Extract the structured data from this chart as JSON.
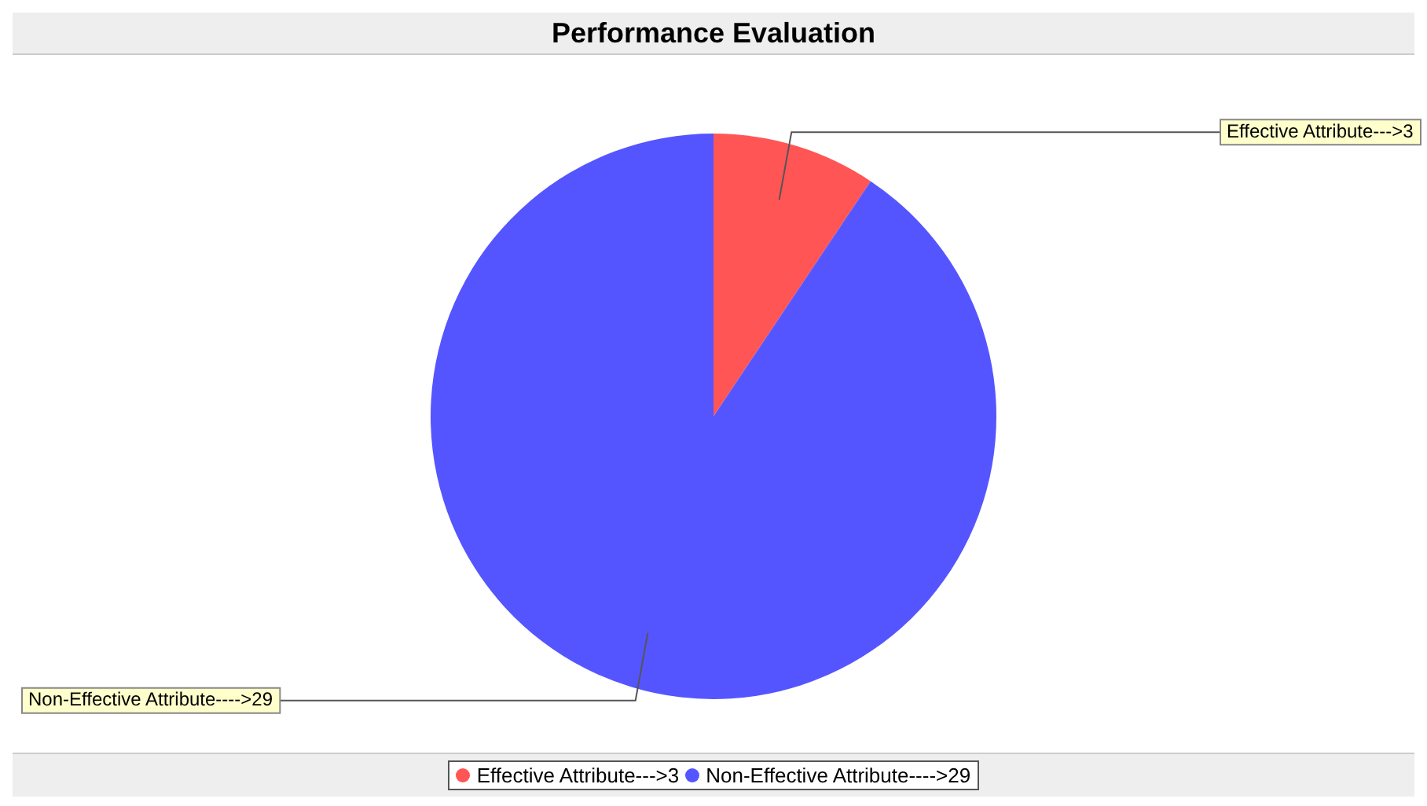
{
  "chart_data": {
    "type": "pie",
    "title": "Performance Evaluation",
    "categories": [
      "Effective Attribute--->3",
      "Non-Effective Attribute---->29"
    ],
    "values": [
      3,
      29
    ],
    "colors": [
      "#ff5555",
      "#5555ff"
    ],
    "legend": "bottom"
  }
}
